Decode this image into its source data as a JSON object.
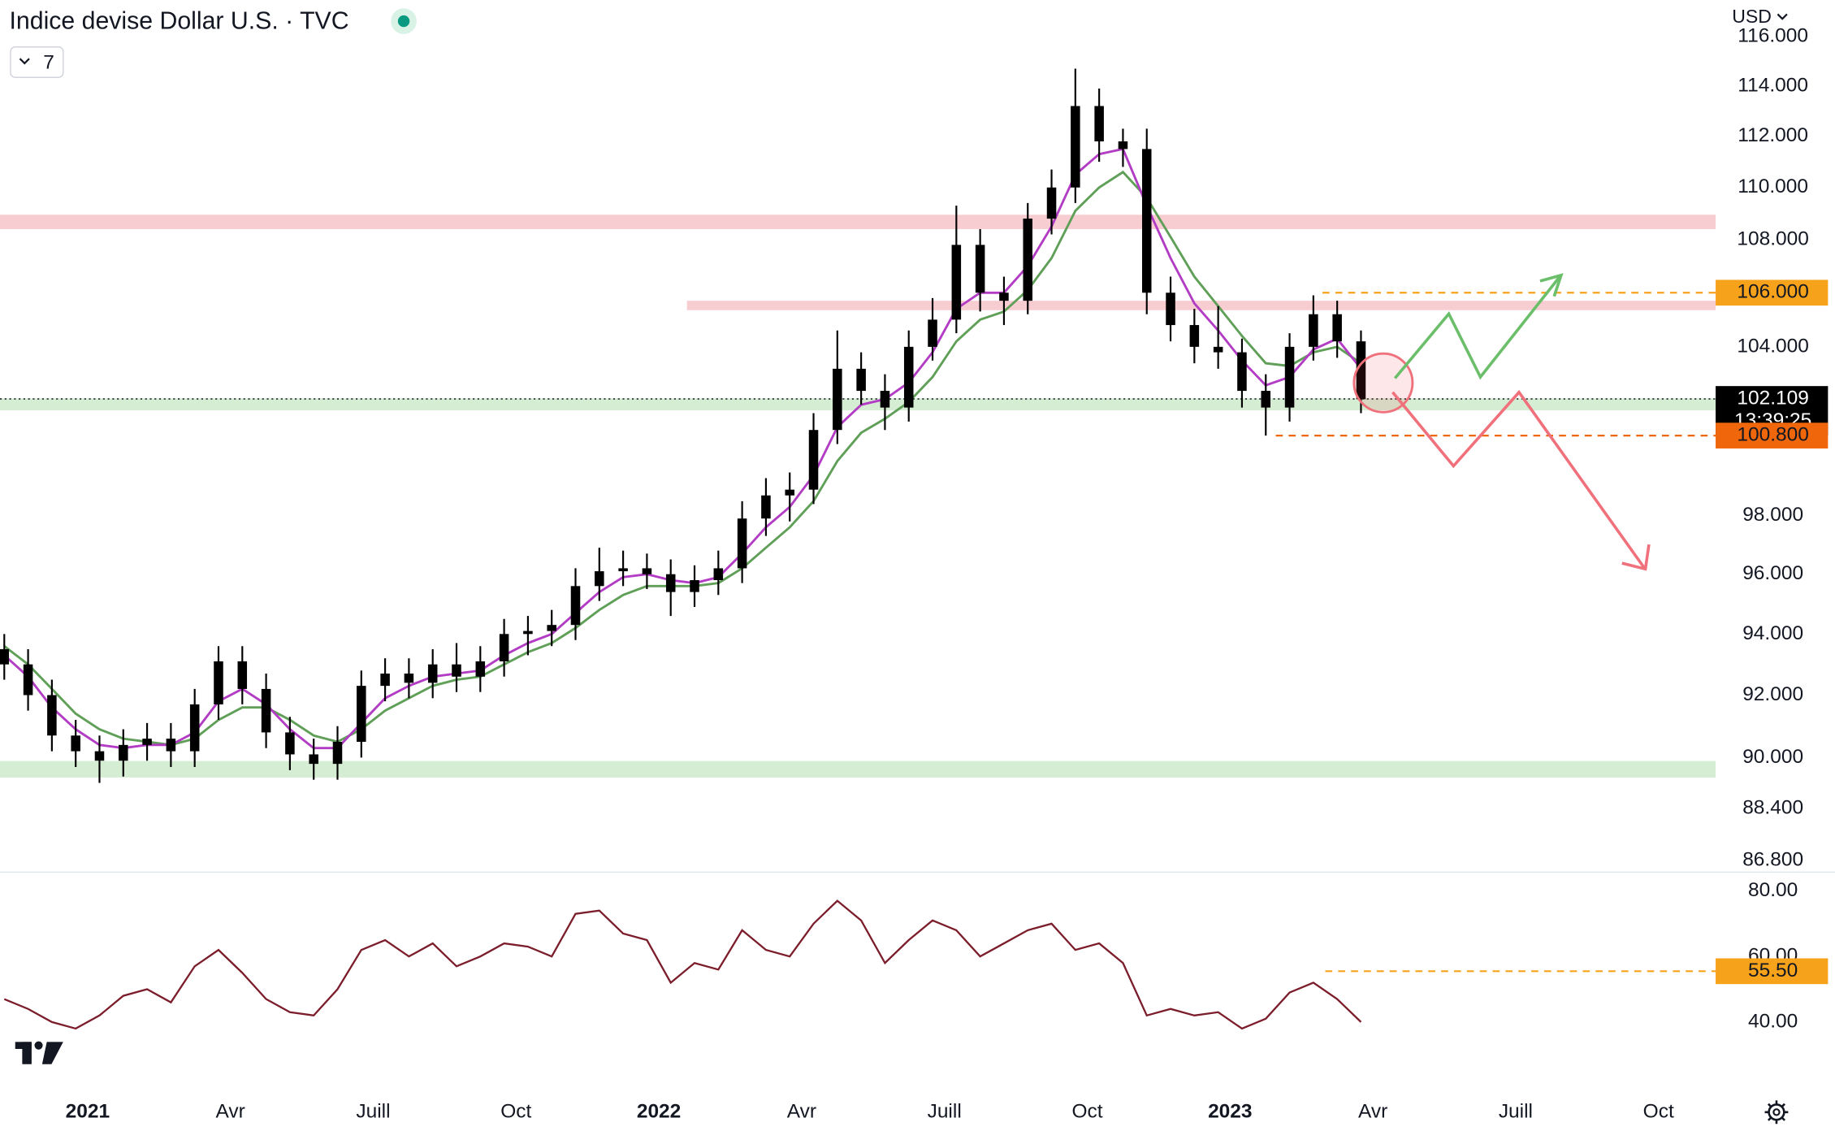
{
  "toolbar": {
    "indicators": "7",
    "currency": "USD"
  },
  "chart_data": [
    {
      "type": "candlestick",
      "title": "Indice devise Dollar U.S. · TVC",
      "log_scale": true,
      "color": "#000000",
      "xlim": [
        -1.84,
        34.2
      ],
      "xticks": [
        {
          "value": 0,
          "label": "2021"
        },
        {
          "value": 3,
          "label": "Avr"
        },
        {
          "value": 6,
          "label": "Juill"
        },
        {
          "value": 9,
          "label": "Oct"
        },
        {
          "value": 12,
          "label": "2022"
        },
        {
          "value": 15,
          "label": "Avr"
        },
        {
          "value": 18,
          "label": "Juill"
        },
        {
          "value": 21,
          "label": "Oct"
        },
        {
          "value": 24,
          "label": "2023"
        },
        {
          "value": 27,
          "label": "Avr"
        },
        {
          "value": 30,
          "label": "Juill"
        },
        {
          "value": 33,
          "label": "Oct"
        }
      ],
      "ylim": [
        86.44,
        117.5
      ],
      "yticks": [
        {
          "value": 116,
          "label": "116.000"
        },
        {
          "value": 114,
          "label": "114.000"
        },
        {
          "value": 112,
          "label": "112.000"
        },
        {
          "value": 110,
          "label": "110.000"
        },
        {
          "value": 108,
          "label": "108.000"
        },
        {
          "value": 104,
          "label": "104.000"
        },
        {
          "value": 98,
          "label": "98.000"
        },
        {
          "value": 96,
          "label": "96.000"
        },
        {
          "value": 94,
          "label": "94.000"
        },
        {
          "value": 92,
          "label": "92.000"
        },
        {
          "value": 90,
          "label": "90.000"
        },
        {
          "value": 88.4,
          "label": "88.400"
        },
        {
          "value": 86.8,
          "label": "86.800"
        }
      ],
      "x": [
        -1.75,
        -1.25,
        -0.75,
        -0.25,
        0.25,
        0.75,
        1.25,
        1.75,
        2.25,
        2.75,
        3.25,
        3.75,
        4.25,
        4.75,
        5.25,
        5.75,
        6.25,
        6.75,
        7.25,
        7.75,
        8.25,
        8.75,
        9.25,
        9.75,
        10.25,
        10.75,
        11.25,
        11.75,
        12.25,
        12.75,
        13.25,
        13.75,
        14.25,
        14.75,
        15.25,
        15.75,
        16.25,
        16.75,
        17.25,
        17.75,
        18.25,
        18.75,
        19.25,
        19.75,
        20.25,
        20.75,
        21.25,
        21.75,
        22.25,
        22.75,
        23.25,
        23.75,
        24.25,
        24.75,
        25.25,
        25.75,
        26.25,
        26.75
      ],
      "open": [
        93.5,
        93.0,
        92.0,
        90.7,
        90.2,
        89.9,
        90.4,
        90.6,
        90.2,
        91.7,
        93.1,
        92.2,
        90.8,
        90.1,
        89.8,
        90.5,
        92.3,
        92.7,
        92.4,
        93.0,
        92.6,
        93.1,
        94.0,
        94.1,
        94.3,
        95.6,
        96.1,
        96.2,
        96.0,
        95.4,
        95.8,
        96.2,
        97.9,
        98.7,
        98.9,
        101.0,
        103.2,
        102.4,
        101.8,
        104.0,
        105.0,
        107.8,
        106.0,
        105.7,
        108.8,
        110.0,
        113.2,
        111.8,
        111.5,
        106.0,
        104.8,
        104.0,
        103.8,
        102.4,
        101.8,
        104.0,
        105.2,
        104.2
      ],
      "high": [
        94.0,
        93.5,
        92.5,
        91.2,
        90.7,
        90.9,
        91.1,
        91.1,
        92.2,
        93.6,
        93.6,
        92.7,
        91.3,
        90.6,
        91.0,
        92.8,
        93.2,
        93.2,
        93.5,
        93.7,
        93.6,
        94.5,
        94.6,
        94.8,
        96.2,
        96.9,
        96.8,
        96.7,
        96.5,
        96.3,
        96.8,
        98.5,
        99.3,
        99.5,
        101.6,
        104.6,
        103.8,
        103.0,
        104.6,
        105.8,
        109.3,
        108.4,
        106.6,
        109.4,
        110.7,
        114.7,
        113.9,
        112.3,
        112.3,
        106.6,
        105.4,
        105.5,
        104.3,
        103.0,
        104.5,
        105.9,
        105.7,
        104.6
      ],
      "low": [
        92.5,
        91.5,
        90.2,
        89.7,
        89.2,
        89.4,
        89.9,
        89.7,
        89.7,
        91.2,
        91.7,
        90.3,
        89.6,
        89.3,
        89.3,
        90.0,
        91.8,
        91.9,
        91.9,
        92.1,
        92.1,
        92.6,
        93.3,
        93.6,
        93.8,
        95.1,
        95.6,
        95.5,
        94.6,
        94.9,
        95.3,
        95.7,
        97.3,
        97.8,
        98.4,
        100.5,
        101.9,
        101.0,
        101.3,
        103.5,
        104.5,
        105.3,
        104.8,
        105.2,
        108.2,
        109.4,
        111.0,
        110.8,
        105.2,
        104.2,
        103.4,
        103.2,
        101.8,
        100.8,
        101.3,
        103.5,
        103.6,
        101.6
      ],
      "close": [
        93.0,
        92.0,
        90.7,
        90.2,
        89.9,
        90.4,
        90.6,
        90.2,
        91.7,
        93.1,
        92.2,
        90.8,
        90.1,
        89.8,
        90.5,
        92.3,
        92.7,
        92.4,
        93.0,
        92.6,
        93.1,
        94.0,
        94.1,
        94.3,
        95.6,
        96.1,
        96.2,
        96.0,
        95.4,
        95.8,
        96.2,
        97.9,
        98.7,
        98.9,
        101.0,
        103.2,
        102.4,
        101.8,
        104.0,
        105.0,
        107.8,
        106.0,
        105.7,
        108.8,
        110.0,
        113.2,
        111.8,
        111.5,
        106.0,
        104.8,
        104.0,
        103.8,
        102.4,
        101.8,
        104.0,
        105.2,
        104.2,
        102.1
      ],
      "overlays": [
        {
          "color": "#5f9f57",
          "values": [
            93.6,
            93.0,
            92.2,
            91.4,
            90.9,
            90.6,
            90.5,
            90.4,
            90.6,
            91.2,
            91.6,
            91.6,
            91.2,
            90.7,
            90.5,
            90.9,
            91.5,
            91.9,
            92.3,
            92.5,
            92.6,
            93.0,
            93.4,
            93.7,
            94.2,
            94.8,
            95.3,
            95.6,
            95.6,
            95.6,
            95.7,
            96.2,
            96.9,
            97.6,
            98.5,
            99.9,
            100.9,
            101.4,
            102.0,
            102.9,
            104.2,
            105.0,
            105.3,
            106.1,
            107.3,
            109.1,
            110.0,
            110.6,
            109.6,
            108.1,
            106.6,
            105.5,
            104.4,
            103.4,
            103.3,
            103.8,
            104.0,
            103.4
          ]
        },
        {
          "color": "#b23cc4",
          "values": [
            93.3,
            92.6,
            91.6,
            90.9,
            90.4,
            90.3,
            90.4,
            90.4,
            90.8,
            91.8,
            92.2,
            91.7,
            90.9,
            90.3,
            90.3,
            91.1,
            91.9,
            92.3,
            92.6,
            92.7,
            92.8,
            93.3,
            93.7,
            94.0,
            94.7,
            95.4,
            95.9,
            96.0,
            95.8,
            95.7,
            95.9,
            96.7,
            97.6,
            98.3,
            99.4,
            101.1,
            101.9,
            102.1,
            102.7,
            103.8,
            105.4,
            106.0,
            106.0,
            107.0,
            108.5,
            110.5,
            111.3,
            111.5,
            109.3,
            107.3,
            105.6,
            104.6,
            103.5,
            102.6,
            102.9,
            103.9,
            104.3,
            103.2
          ]
        }
      ],
      "zones": [
        {
          "low": 108.4,
          "high": 108.95,
          "from": -1.84,
          "color": "#f8cdd2"
        },
        {
          "low": 105.35,
          "high": 105.7,
          "from": 12.59,
          "color": "#f8cdd2"
        },
        {
          "low": 101.7,
          "high": 102.13,
          "from": -1.84,
          "color": "#d5edd3"
        },
        {
          "low": 89.37,
          "high": 89.89,
          "from": -1.84,
          "color": "#d5edd3"
        }
      ],
      "levels": [
        {
          "value": 106.0,
          "from": 25.94,
          "color": "#f7a21b",
          "style": "dashed"
        },
        {
          "value": 100.8,
          "from": 24.96,
          "color": "#f0660b",
          "style": "dashed"
        },
        {
          "value": 102.109,
          "from": -1.84,
          "color": "#131722",
          "style": "dotted"
        }
      ],
      "price_labels": [
        {
          "value": 106.0,
          "label": "106.000",
          "color": "#f7a21b",
          "text_color": "#131722"
        },
        {
          "value": 102.109,
          "label": "102.109",
          "color": "#000000",
          "text_color": "#ffffff",
          "countdown": "13:39:25"
        },
        {
          "value": 100.8,
          "label": "100.800",
          "color": "#f0660b",
          "text_color": "#131722"
        }
      ]
    },
    {
      "type": "line",
      "color": "#7b1d2a",
      "xlim": [
        -1.84,
        34.2
      ],
      "ylim": [
        20,
        85
      ],
      "yticks": [
        {
          "value": 80,
          "label": "80.00"
        },
        {
          "value": 60,
          "label": "60.00"
        },
        {
          "value": 40,
          "label": "40.00"
        }
      ],
      "x": [
        -1.75,
        -1.25,
        -0.75,
        -0.25,
        0.25,
        0.75,
        1.25,
        1.75,
        2.25,
        2.75,
        3.25,
        3.75,
        4.25,
        4.75,
        5.25,
        5.75,
        6.25,
        6.75,
        7.25,
        7.75,
        8.25,
        8.75,
        9.25,
        9.75,
        10.25,
        10.75,
        11.25,
        11.75,
        12.25,
        12.75,
        13.25,
        13.75,
        14.25,
        14.75,
        15.25,
        15.75,
        16.25,
        16.75,
        17.25,
        17.75,
        18.25,
        18.75,
        19.25,
        19.75,
        20.25,
        20.75,
        21.25,
        21.75,
        22.25,
        22.75,
        23.25,
        23.75,
        24.25,
        24.75,
        25.25,
        25.75,
        26.25,
        26.75
      ],
      "values": [
        47,
        44,
        40,
        38,
        42,
        48,
        50,
        46,
        57,
        62,
        55,
        47,
        43,
        42,
        50,
        62,
        65,
        60,
        64,
        57,
        60,
        64,
        63,
        60,
        73,
        74,
        67,
        65,
        52,
        58,
        56,
        68,
        62,
        60,
        70,
        77,
        71,
        58,
        65,
        71,
        68,
        60,
        64,
        68,
        70,
        62,
        64,
        58,
        42,
        44,
        42,
        43,
        38,
        41,
        49,
        52,
        47,
        40
      ],
      "levels": [
        {
          "value": 55.5,
          "from": 26.0,
          "color": "#f7a21b",
          "style": "dashed"
        }
      ],
      "price_labels": [
        {
          "value": 55.5,
          "label": "55.50",
          "color": "#f7a21b",
          "text_color": "#131722"
        }
      ]
    }
  ]
}
